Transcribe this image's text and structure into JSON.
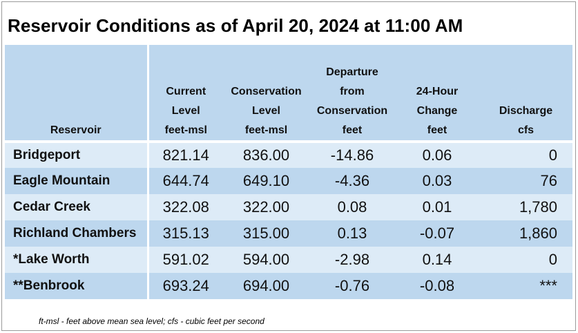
{
  "title": "Reservoir Conditions as of April 20, 2024 at 11:00 AM",
  "columns": [
    {
      "lines": [
        "Reservoir"
      ]
    },
    {
      "lines": [
        "Current",
        "Level",
        "feet-msl"
      ]
    },
    {
      "lines": [
        "Conservation",
        "Level",
        "feet-msl"
      ]
    },
    {
      "lines": [
        "Departure",
        "from",
        "Conservation",
        "feet"
      ]
    },
    {
      "lines": [
        "24-Hour",
        "Change",
        "feet"
      ]
    },
    {
      "lines": [
        "Discharge",
        "cfs"
      ]
    }
  ],
  "rows": [
    {
      "name": "Bridgeport",
      "current": "821.14",
      "conservation": "836.00",
      "departure": "-14.86",
      "change": "0.06",
      "discharge": "0"
    },
    {
      "name": "Eagle Mountain",
      "current": "644.74",
      "conservation": "649.10",
      "departure": "-4.36",
      "change": "0.03",
      "discharge": "76"
    },
    {
      "name": "Cedar Creek",
      "current": "322.08",
      "conservation": "322.00",
      "departure": "0.08",
      "change": "0.01",
      "discharge": "1,780"
    },
    {
      "name": "Richland Chambers",
      "current": "315.13",
      "conservation": "315.00",
      "departure": "0.13",
      "change": "-0.07",
      "discharge": "1,860"
    },
    {
      "name": "*Lake Worth",
      "current": "591.02",
      "conservation": "594.00",
      "departure": "-2.98",
      "change": "0.14",
      "discharge": "0"
    },
    {
      "name": "**Benbrook",
      "current": "693.24",
      "conservation": "694.00",
      "departure": "-0.76",
      "change": "-0.08",
      "discharge": "***"
    }
  ],
  "footnote": "ft-msl - feet above mean sea level; cfs - cubic feet per second",
  "colors": {
    "header_bg": "#bdd7ee",
    "row_light": "#ddebf7",
    "row_dark": "#bdd7ee",
    "separator": "#ffffff"
  }
}
